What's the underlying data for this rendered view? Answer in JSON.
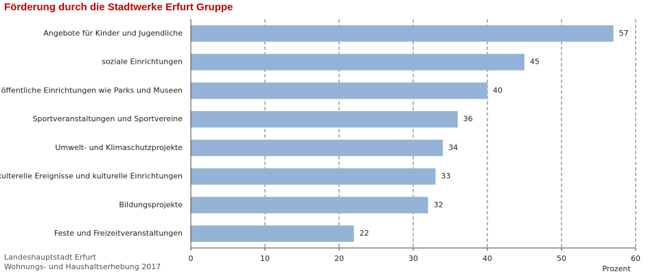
{
  "chart_data": {
    "type": "bar",
    "orientation": "horizontal",
    "title": "Förderung durch die Stadtwerke Erfurt Gruppe",
    "categories": [
      "Angebote für Kinder und Jugendliche",
      "soziale Einrichtungen",
      "öffentliche Einrichtungen wie Parks und Museen",
      "Sportveranstaltungen und Sportvereine",
      "Umwelt- und Klimaschutzprojekte",
      "kulterelle Ereignisse und kulturelle Einrichtungen",
      "Bildungsprojekte",
      "Feste und Freizeitveranstaltungen"
    ],
    "values": [
      57,
      45,
      40,
      36,
      34,
      33,
      32,
      22
    ],
    "color": "#95b3d7",
    "xlim": [
      0,
      60
    ],
    "xticks": [
      0,
      10,
      20,
      30,
      40,
      50,
      60
    ],
    "x_label": "Prozent",
    "grid": true,
    "source": [
      "Landeshauptstadt Erfurt",
      "Wohnungs- und Haushaltserhebung 2017"
    ]
  }
}
